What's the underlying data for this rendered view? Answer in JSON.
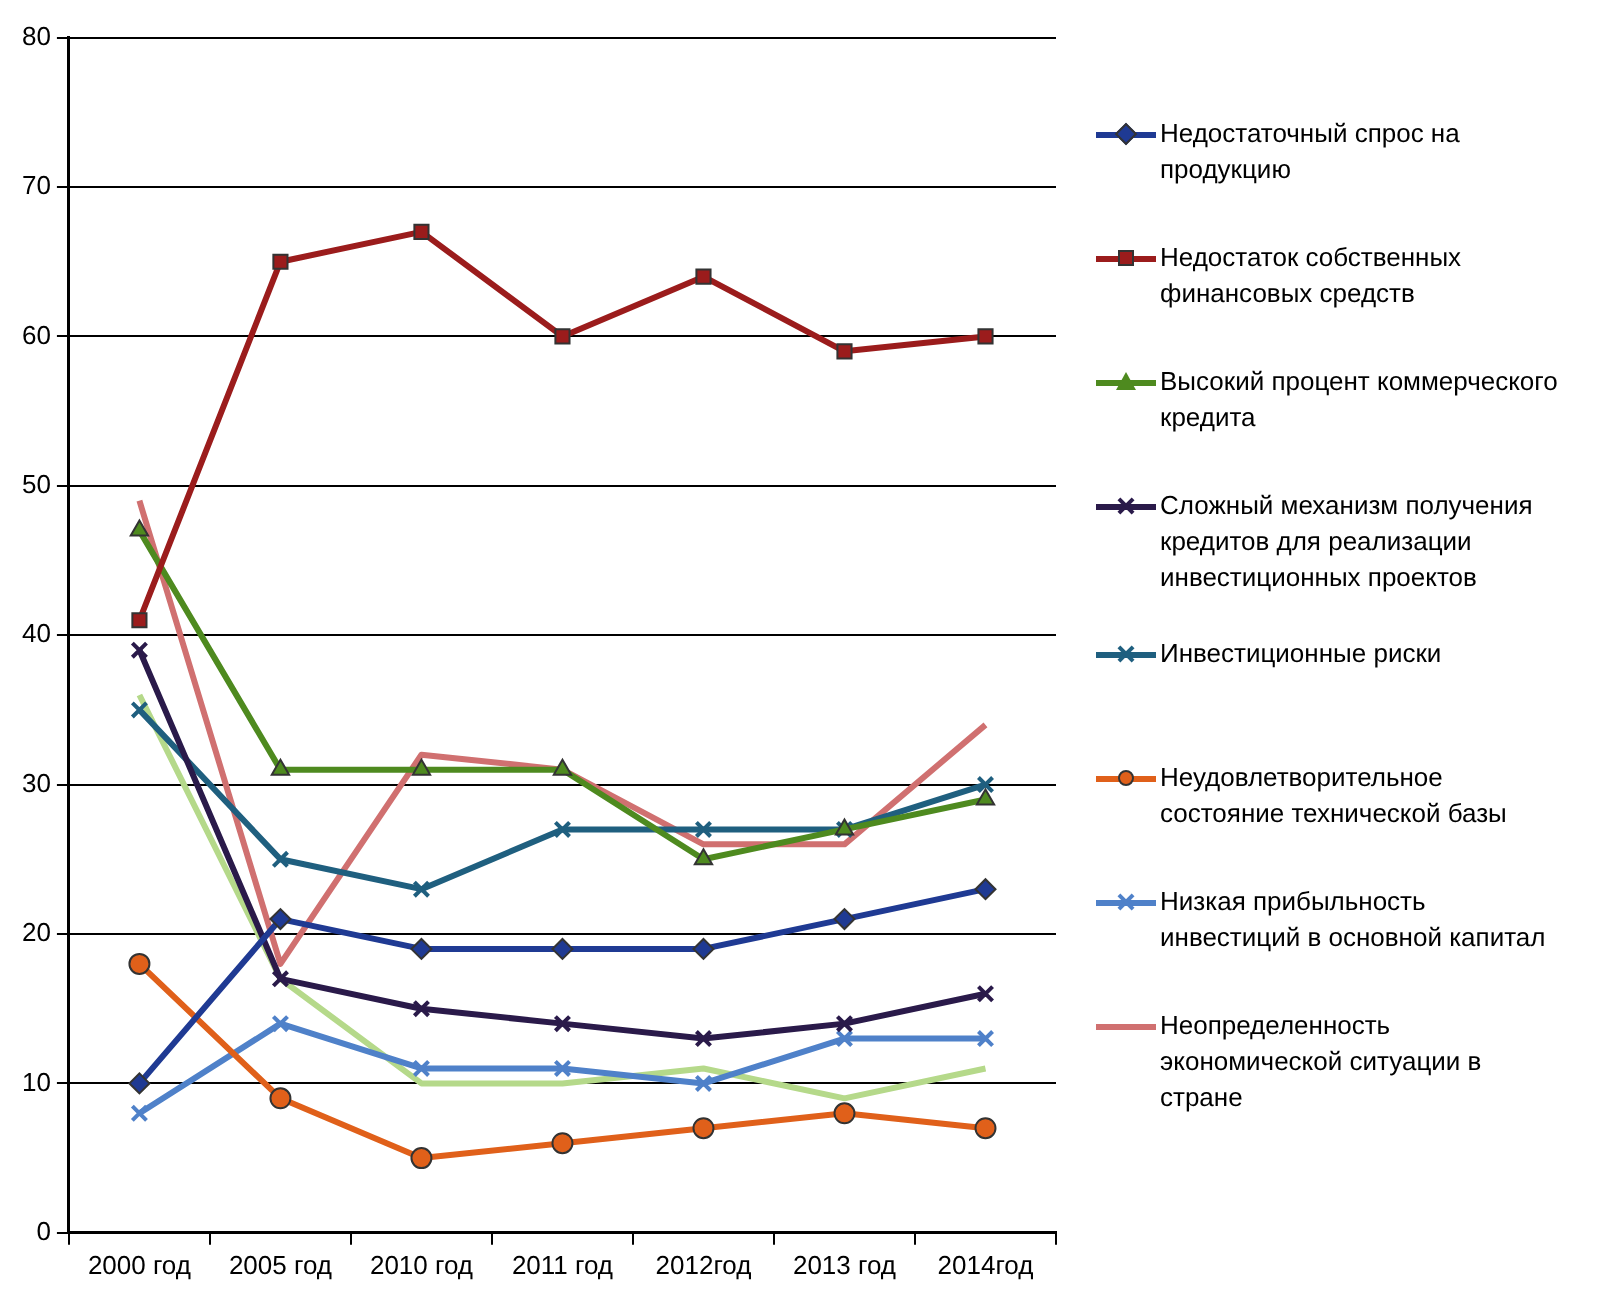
{
  "chart_data": {
    "type": "line",
    "categories": [
      "2000 год",
      "2005 год",
      "2010 год",
      "2011 год",
      "2012год",
      "2013 год",
      "2014год"
    ],
    "ylim": [
      0,
      80
    ],
    "yticks": [
      0,
      10,
      20,
      30,
      40,
      50,
      60,
      70,
      80
    ],
    "grid": "y",
    "legend": "right",
    "line_style": "solid",
    "series": [
      {
        "name": "Недостаточный спрос на продукцию",
        "color": "#1f3a93",
        "marker": "diamond",
        "values": [
          10,
          21,
          19,
          19,
          19,
          21,
          23
        ]
      },
      {
        "name": "Недостаток собственных финансовых средств",
        "color": "#9b1c1c",
        "marker": "square",
        "values": [
          41,
          65,
          67,
          60,
          64,
          59,
          60
        ]
      },
      {
        "name": "Высокий процент коммерческого кредита",
        "color": "#4e8a1f",
        "marker": "triangle",
        "values": [
          47,
          31,
          31,
          31,
          25,
          27,
          29
        ]
      },
      {
        "name": "Сложный механизм получения кредитов для реализации инвестиционных проектов",
        "color": "#2a1a4a",
        "marker": "cross",
        "values": [
          39,
          17,
          15,
          14,
          13,
          14,
          16
        ]
      },
      {
        "name": "Инвестиционные риски",
        "color": "#1f5f7f",
        "marker": "cross",
        "values": [
          35,
          25,
          23,
          27,
          27,
          27,
          30
        ]
      },
      {
        "name": "Неудовлетворительное состояние технической базы",
        "color": "#e0601a",
        "marker": "circle",
        "values": [
          18,
          9,
          5,
          6,
          7,
          8,
          7
        ]
      },
      {
        "name": "Низкая прибыльность инвестиций в основной капитал",
        "color": "#4f81c9",
        "marker": "cross",
        "values": [
          8,
          14,
          11,
          11,
          10,
          13,
          13
        ]
      },
      {
        "name": "Неопределенность экономической ситуации в стране",
        "color": "#d07070",
        "marker": "none",
        "values": [
          49,
          18,
          32,
          31,
          26,
          26,
          34
        ]
      },
      {
        "color": "#b5d98a",
        "marker": "none",
        "values": [
          36,
          17,
          10,
          10,
          11,
          9,
          11
        ]
      }
    ]
  }
}
